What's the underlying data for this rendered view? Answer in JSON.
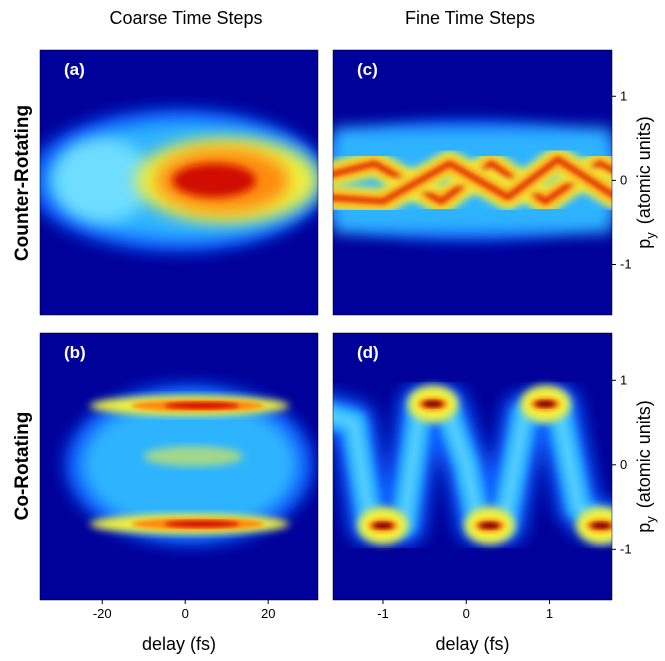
{
  "figure": {
    "column_titles": [
      "Coarse Time Steps",
      "Fine Time Steps"
    ],
    "row_labels": [
      "Counter-Rotating",
      "Co-Rotating"
    ]
  },
  "chart_data": [
    {
      "type": "heatmap",
      "panel_label": "(a)",
      "xlim": [
        -35,
        32
      ],
      "ylim": [
        -1.6,
        1.55
      ]
    },
    {
      "type": "heatmap",
      "panel_label": "(b)",
      "xlim": [
        -35,
        32
      ],
      "ylim": [
        -1.6,
        1.56
      ],
      "xlabel": "delay (fs)",
      "xticks": [
        -20,
        0,
        20
      ]
    },
    {
      "type": "heatmap",
      "panel_label": "(c)",
      "xlim": [
        -1.6,
        1.75
      ],
      "ylim": [
        -1.6,
        1.55
      ],
      "yticks": [
        -1,
        0,
        1
      ],
      "ylabel": {
        "main": "p",
        "sub": "y",
        "unit": "(atomic units)"
      }
    },
    {
      "type": "heatmap",
      "panel_label": "(d)",
      "xlim": [
        -1.6,
        1.75
      ],
      "ylim": [
        -1.6,
        1.56
      ],
      "xlabel": "delay (fs)",
      "xticks": [
        -1,
        0,
        1
      ],
      "yticks": [
        -1,
        0,
        1
      ],
      "ylabel": {
        "main": "p",
        "sub": "y",
        "unit": "(atomic units)"
      }
    }
  ]
}
